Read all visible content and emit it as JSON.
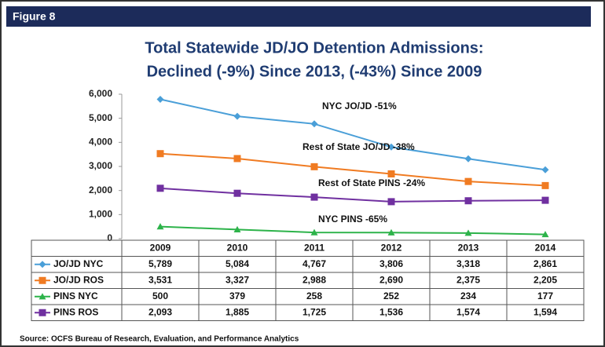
{
  "header": "Figure 8",
  "chart_data": {
    "type": "line",
    "title": [
      "Total Statewide JD/JO Detention Admissions:",
      "Declined (-9%) Since 2013, (-43%) Since 2009"
    ],
    "categories": [
      "2009",
      "2010",
      "2011",
      "2012",
      "2013",
      "2014"
    ],
    "series": [
      {
        "name": "JO/JD NYC",
        "color": "#4a9fd8",
        "marker": "diamond",
        "values": [
          5789,
          5084,
          4767,
          3806,
          3318,
          2861
        ],
        "value_labels": [
          "5,789",
          "5,084",
          "4,767",
          "3,806",
          "3,318",
          "2,861"
        ]
      },
      {
        "name": "JO/JD ROS",
        "color": "#f07b22",
        "marker": "square",
        "values": [
          3531,
          3327,
          2988,
          2690,
          2375,
          2205
        ],
        "value_labels": [
          "3,531",
          "3,327",
          "2,988",
          "2,690",
          "2,375",
          "2,205"
        ]
      },
      {
        "name": "PINS NYC",
        "color": "#2db34a",
        "marker": "triangle",
        "values": [
          500,
          379,
          258,
          252,
          234,
          177
        ]
      },
      {
        "name": "PINS ROS",
        "color": "#7030a0",
        "marker": "square",
        "values": [
          2093,
          1885,
          1725,
          1536,
          1574,
          1594
        ],
        "value_labels": [
          "2,093",
          "1,885",
          "1,725",
          "1,536",
          "1,574",
          "1,594"
        ]
      }
    ],
    "ylim": [
      0,
      6000
    ],
    "yticks": [
      0,
      {
        "value": 1000,
        "label": "1,000"
      },
      {
        "value": 2000,
        "label": "2,000"
      },
      {
        "value": 3000,
        "label": "3,000"
      },
      {
        "value": 4000,
        "label": "4,000"
      },
      {
        "value": 5000,
        "label": "5,000"
      },
      {
        "value": 6000,
        "label": "6,000"
      }
    ],
    "grid": false,
    "annotations": [
      "NYC JO/JD  -51%",
      "Rest of State JO/JD  -38%",
      "Rest of State PINS  -24%",
      "NYC PINS  -65%"
    ]
  },
  "source": "Source:  OCFS Bureau of Research, Evaluation, and Performance Analytics"
}
